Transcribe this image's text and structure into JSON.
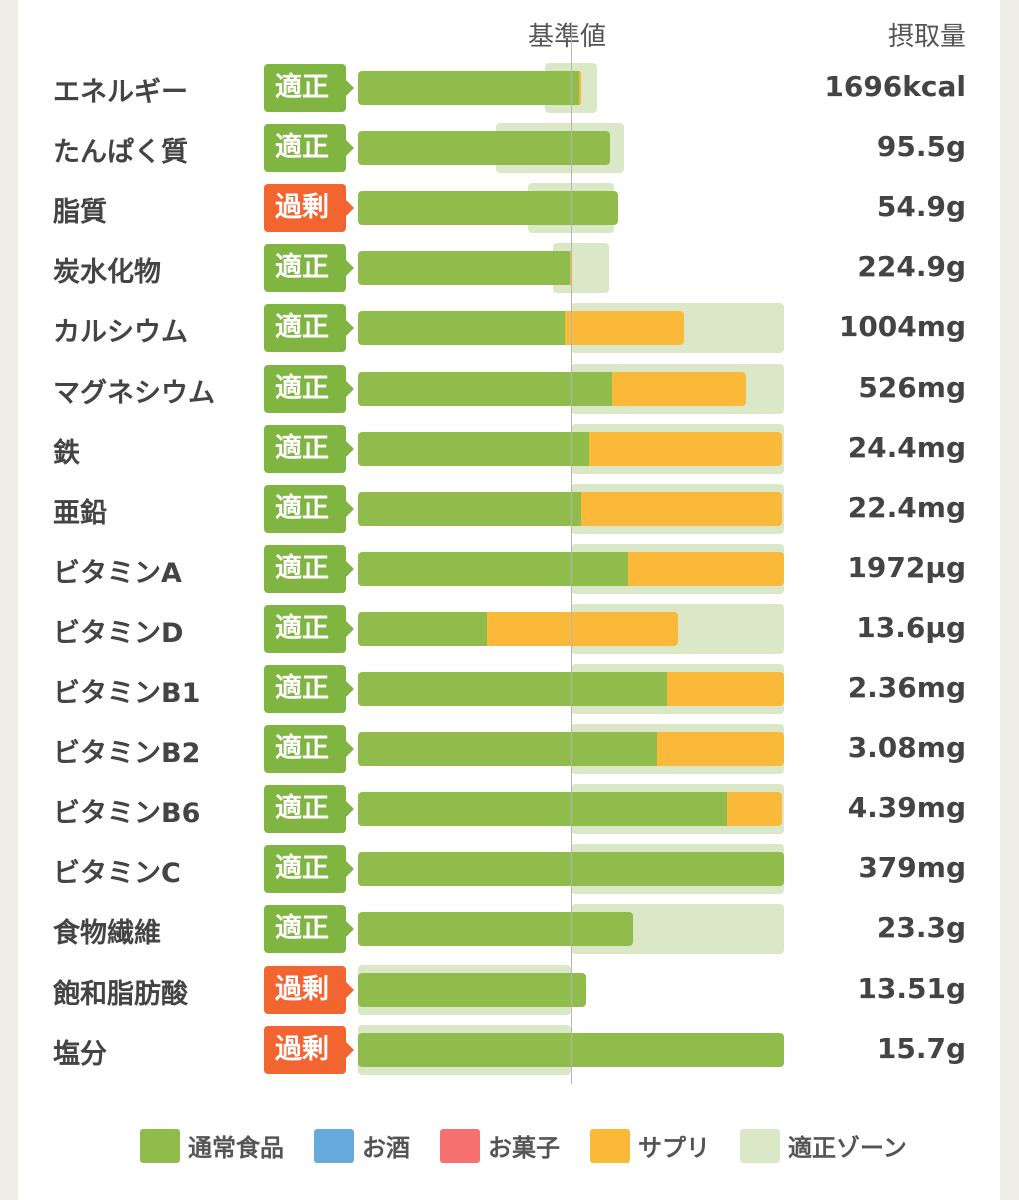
{
  "header": {
    "reference_label": "基準値",
    "intake_label": "摂取量"
  },
  "colors": {
    "food": "#8fbc4b",
    "alcohol": "#66abdc",
    "snacks": "#f87171",
    "supplement": "#fbb93a",
    "zone": "#dbe8c8",
    "ok": "#7fb540",
    "excess": "#f26430"
  },
  "legend": [
    {
      "label": "通常食品",
      "color": "#8fbc4b"
    },
    {
      "label": "お酒",
      "color": "#66abdc"
    },
    {
      "label": "お菓子",
      "color": "#f87171"
    },
    {
      "label": "サプリ",
      "color": "#fbb93a"
    },
    {
      "label": "適正ゾーン",
      "color": "#dbe8c8"
    }
  ],
  "chart_data": {
    "type": "bar",
    "orientation": "horizontal-stacked",
    "unit": "% of reference value (基準値 = 100)",
    "xlim": [
      0,
      200
    ],
    "rows": [
      {
        "name": "エネルギー",
        "status": "適正",
        "value": "1696kcal",
        "food": 103.8,
        "supplement": 0.9,
        "zone": [
          88,
          112
        ]
      },
      {
        "name": "たんぱく質",
        "status": "適正",
        "value": "95.5g",
        "food": 118.3,
        "supplement": 0,
        "zone": [
          65,
          125
        ]
      },
      {
        "name": "脂質",
        "status": "過剰",
        "value": "54.9g",
        "food": 122,
        "supplement": 0,
        "zone": [
          80,
          120
        ]
      },
      {
        "name": "炭水化物",
        "status": "適正",
        "value": "224.9g",
        "food": 99.5,
        "supplement": 1,
        "zone": [
          91.5,
          118
        ]
      },
      {
        "name": "カルシウム",
        "status": "適正",
        "value": "1004mg",
        "food": 97.2,
        "supplement": 55.8,
        "zone": [
          100,
          200
        ]
      },
      {
        "name": "マグネシウム",
        "status": "適正",
        "value": "526mg",
        "food": 119.2,
        "supplement": 63,
        "zone": [
          100,
          200
        ]
      },
      {
        "name": "鉄",
        "status": "適正",
        "value": "24.4mg",
        "food": 108.5,
        "supplement": 90.5,
        "zone": [
          100,
          200
        ]
      },
      {
        "name": "亜鉛",
        "status": "適正",
        "value": "22.4mg",
        "food": 104.7,
        "supplement": 94.3,
        "zone": [
          100,
          200
        ]
      },
      {
        "name": "ビタミンA",
        "status": "適正",
        "value": "1972µg",
        "food": 126.8,
        "supplement": 73.2,
        "zone": [
          100,
          200
        ]
      },
      {
        "name": "ビタミンD",
        "status": "適正",
        "value": "13.6µg",
        "food": 60.6,
        "supplement": 89.6,
        "zone": [
          100,
          200
        ]
      },
      {
        "name": "ビタミンB1",
        "status": "適正",
        "value": "2.36mg",
        "food": 145,
        "supplement": 55,
        "zone": [
          100,
          200
        ]
      },
      {
        "name": "ビタミンB2",
        "status": "適正",
        "value": "3.08mg",
        "food": 140.4,
        "supplement": 59.6,
        "zone": [
          100,
          200
        ]
      },
      {
        "name": "ビタミンB6",
        "status": "適正",
        "value": "4.39mg",
        "food": 173.2,
        "supplement": 25.8,
        "zone": [
          100,
          200
        ]
      },
      {
        "name": "ビタミンC",
        "status": "適正",
        "value": "379mg",
        "food": 200,
        "supplement": 0,
        "zone": [
          100,
          200
        ]
      },
      {
        "name": "食物繊維",
        "status": "適正",
        "value": "23.3g",
        "food": 129.1,
        "supplement": 0,
        "zone": [
          100,
          200
        ]
      },
      {
        "name": "飽和脂肪酸",
        "status": "過剰",
        "value": "13.51g",
        "food": 107,
        "supplement": 0,
        "zone": [
          0,
          100
        ]
      },
      {
        "name": "塩分",
        "status": "過剰",
        "value": "15.7g",
        "food": 200,
        "supplement": 0,
        "zone": [
          0,
          100
        ]
      }
    ]
  }
}
